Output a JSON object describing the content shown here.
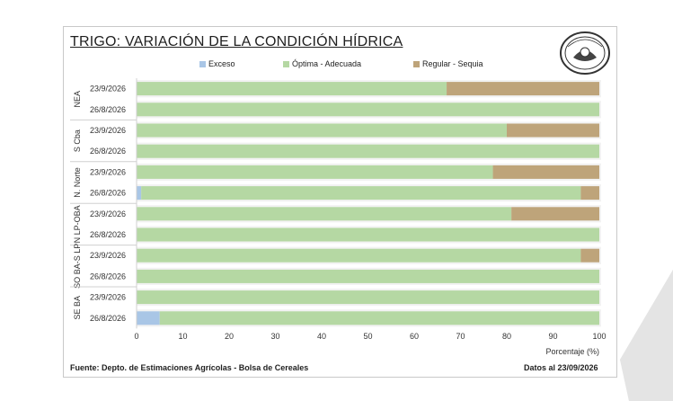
{
  "chart_data": {
    "type": "bar",
    "orientation": "horizontal",
    "stacked": true,
    "title": "TRIGO: VARIACIÓN DE LA CONDICIÓN HÍDRICA",
    "xlabel": "Porcentaje (%)",
    "xlim": [
      0,
      100
    ],
    "xticks": [
      "0",
      "10",
      "20",
      "30",
      "40",
      "50",
      "60",
      "70",
      "80",
      "90",
      "100"
    ],
    "legend_position": "top",
    "groups": [
      {
        "name": "NEA",
        "rows": [
          {
            "date": "23/9/2026",
            "values": [
              0,
              67,
              33
            ]
          },
          {
            "date": "26/8/2026",
            "values": [
              0,
              100,
              0
            ]
          }
        ]
      },
      {
        "name": "S Cba",
        "rows": [
          {
            "date": "23/9/2026",
            "values": [
              0,
              80,
              20
            ]
          },
          {
            "date": "26/8/2026",
            "values": [
              0,
              100,
              0
            ]
          }
        ]
      },
      {
        "name": "N. Norte",
        "rows": [
          {
            "date": "23/9/2026",
            "values": [
              0,
              77,
              23
            ]
          },
          {
            "date": "26/8/2026",
            "values": [
              1,
              95,
              4
            ]
          }
        ]
      },
      {
        "name": "N LP-OBA",
        "rows": [
          {
            "date": "23/9/2026",
            "values": [
              0,
              81,
              19
            ]
          },
          {
            "date": "26/8/2026",
            "values": [
              0,
              100,
              0
            ]
          }
        ]
      },
      {
        "name": "SO BA-S LP",
        "rows": [
          {
            "date": "23/9/2026",
            "values": [
              0,
              96,
              4
            ]
          },
          {
            "date": "26/8/2026",
            "values": [
              0,
              100,
              0
            ]
          }
        ]
      },
      {
        "name": "SE BA",
        "rows": [
          {
            "date": "23/9/2026",
            "values": [
              0,
              100,
              0
            ]
          },
          {
            "date": "26/8/2026",
            "values": [
              5,
              95,
              0
            ]
          }
        ]
      }
    ],
    "series": [
      {
        "name": "Exceso",
        "color": "#a9c6e6"
      },
      {
        "name": "Óptima - Adecuada",
        "color": "#b5d8a3"
      },
      {
        "name": "Regular - Sequia",
        "color": "#bea47a"
      }
    ]
  },
  "logo": {
    "text": "Bolsa de Cereales"
  },
  "footer": {
    "source": "Fuente: Depto. de Estimaciones Agrícolas - Bolsa de Cereales",
    "date": "Datos al 23/09/2026"
  }
}
